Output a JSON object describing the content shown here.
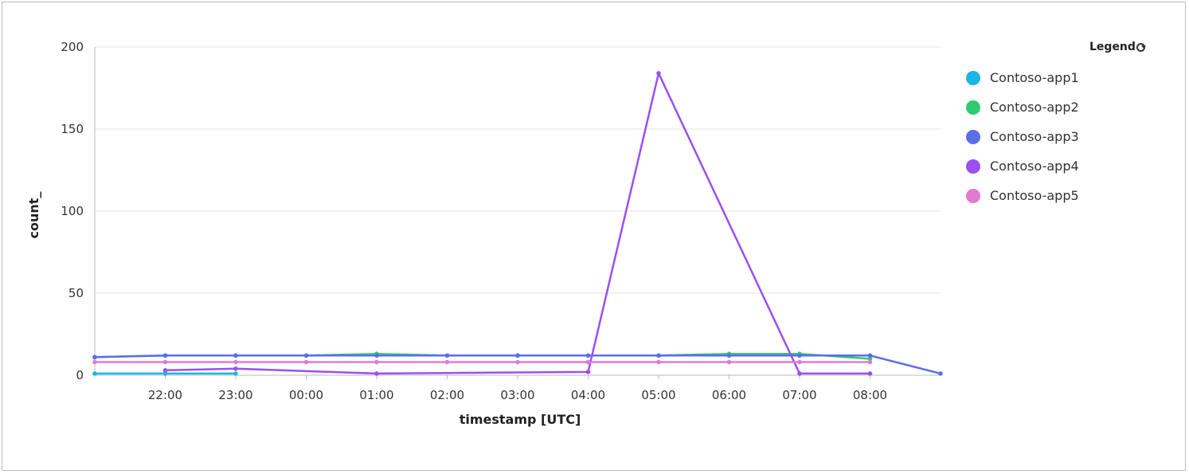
{
  "chart_data": {
    "type": "line",
    "xlabel": "timestamp [UTC]",
    "ylabel": "count_",
    "ylim": [
      0,
      200
    ],
    "yticks": [
      0,
      50,
      100,
      150,
      200
    ],
    "xlim": [
      "21:00",
      "09:00"
    ],
    "xticks": [
      "22:00",
      "23:00",
      "00:00",
      "01:00",
      "02:00",
      "03:00",
      "04:00",
      "05:00",
      "06:00",
      "07:00",
      "08:00"
    ],
    "grid": "horizontal",
    "legend": {
      "title": "Legend",
      "placement": "top-right"
    },
    "series": [
      {
        "name": "Contoso-app1",
        "color": "#1ab6e6",
        "x": [
          "21:00",
          "22:00",
          "23:00"
        ],
        "values": [
          1,
          1,
          1
        ]
      },
      {
        "name": "Contoso-app2",
        "color": "#2ecc71",
        "x": [
          "21:00",
          "22:00",
          "23:00",
          "00:00",
          "01:00",
          "02:00",
          "03:00",
          "04:00",
          "05:00",
          "06:00",
          "07:00",
          "08:00"
        ],
        "values": [
          11,
          12,
          12,
          12,
          13,
          12,
          12,
          12,
          12,
          13,
          13,
          10
        ]
      },
      {
        "name": "Contoso-app3",
        "color": "#5b6ee8",
        "x": [
          "21:00",
          "22:00",
          "23:00",
          "00:00",
          "01:00",
          "02:00",
          "03:00",
          "04:00",
          "05:00",
          "06:00",
          "07:00",
          "08:00",
          "09:00"
        ],
        "values": [
          11,
          12,
          12,
          12,
          12,
          12,
          12,
          12,
          12,
          12,
          12,
          12,
          1
        ]
      },
      {
        "name": "Contoso-app4",
        "color": "#9b4ff0",
        "x": [
          "22:00",
          "23:00",
          "01:00",
          "04:00",
          "05:00",
          "07:00",
          "08:00"
        ],
        "values": [
          3,
          4,
          1,
          2,
          184,
          1,
          1
        ]
      },
      {
        "name": "Contoso-app5",
        "color": "#e07ccf",
        "x": [
          "21:00",
          "22:00",
          "23:00",
          "00:00",
          "01:00",
          "02:00",
          "03:00",
          "04:00",
          "05:00",
          "06:00",
          "07:00",
          "08:00"
        ],
        "values": [
          8,
          8,
          8,
          8,
          8,
          8,
          8,
          8,
          8,
          8,
          8,
          8
        ]
      }
    ]
  }
}
